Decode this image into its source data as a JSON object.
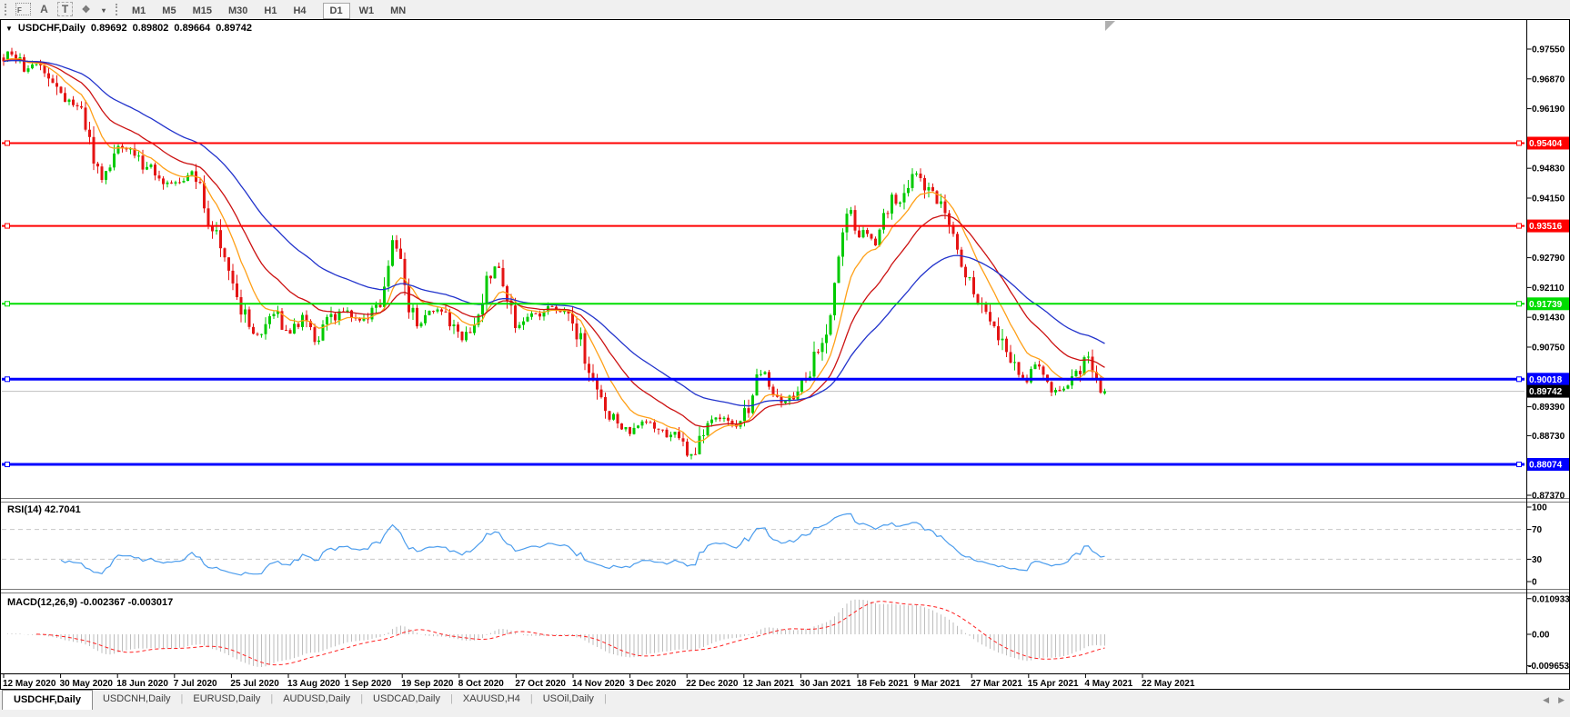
{
  "toolbar": {
    "icons": [
      {
        "name": "frame-tool-icon",
        "glyph": "F"
      },
      {
        "name": "text-label-icon",
        "glyph": "A"
      },
      {
        "name": "text-tool-icon",
        "glyph": "T"
      },
      {
        "name": "shapes-tool-icon",
        "glyph": "❖"
      },
      {
        "name": "shapes-dropdown-icon",
        "glyph": "▾"
      }
    ],
    "timeframes": [
      "M1",
      "M5",
      "M15",
      "M30",
      "H1",
      "H4",
      "D1",
      "W1",
      "MN"
    ],
    "active_timeframe": "D1"
  },
  "chart": {
    "title": {
      "dropdown_glyph": "▼",
      "symbol": "USDCHF,Daily",
      "open": "0.89692",
      "high": "0.89802",
      "low": "0.89664",
      "close": "0.89742"
    },
    "price_axis_ticks": [
      {
        "label": "0.97550",
        "value": 0.9755
      },
      {
        "label": "0.96870",
        "value": 0.9687
      },
      {
        "label": "0.96190",
        "value": 0.9619
      },
      {
        "label": "0.94830",
        "value": 0.9483
      },
      {
        "label": "0.94150",
        "value": 0.9415
      },
      {
        "label": "0.92790",
        "value": 0.9279
      },
      {
        "label": "0.92110",
        "value": 0.9211
      },
      {
        "label": "0.91430",
        "value": 0.9143
      },
      {
        "label": "0.90750",
        "value": 0.9075
      },
      {
        "label": "0.89390",
        "value": 0.8939
      },
      {
        "label": "0.88730",
        "value": 0.8873
      },
      {
        "label": "0.87370",
        "value": 0.8737
      }
    ],
    "hlines": [
      {
        "price": 0.95404,
        "label": "0.95404",
        "color": "#ff0000",
        "width": 2
      },
      {
        "price": 0.93516,
        "label": "0.93516",
        "color": "#ff0000",
        "width": 2
      },
      {
        "price": 0.91739,
        "label": "0.91739",
        "color": "#00dd00",
        "width": 2
      },
      {
        "price": 0.90018,
        "label": "0.90018",
        "color": "#0000ff",
        "width": 3
      },
      {
        "price": 0.88074,
        "label": "0.88074",
        "color": "#0000ff",
        "width": 3
      }
    ],
    "bid": {
      "price": 0.89742,
      "label": "0.89742"
    },
    "date_labels": [
      "12 May 2020",
      "30 May 2020",
      "18 Jun 2020",
      "7 Jul 2020",
      "25 Jul 2020",
      "13 Aug 2020",
      "1 Sep 2020",
      "19 Sep 2020",
      "8 Oct 2020",
      "27 Oct 2020",
      "14 Nov 2020",
      "3 Dec 2020",
      "22 Dec 2020",
      "12 Jan 2021",
      "30 Jan 2021",
      "18 Feb 2021",
      "9 Mar 2021",
      "27 Mar 2021",
      "15 Apr 2021",
      "4 May 2021",
      "22 May 2021"
    ],
    "price_path_anchors": [
      [
        0,
        0.973
      ],
      [
        14,
        0.975
      ],
      [
        28,
        0.97
      ],
      [
        42,
        0.9722
      ],
      [
        55,
        0.969
      ],
      [
        68,
        0.9645
      ],
      [
        80,
        0.9628
      ],
      [
        92,
        0.96
      ],
      [
        102,
        0.95
      ],
      [
        112,
        0.9455
      ],
      [
        122,
        0.95
      ],
      [
        134,
        0.9533
      ],
      [
        146,
        0.9518
      ],
      [
        158,
        0.949
      ],
      [
        170,
        0.9478
      ],
      [
        182,
        0.9452
      ],
      [
        194,
        0.9445
      ],
      [
        205,
        0.9462
      ],
      [
        214,
        0.947
      ],
      [
        222,
        0.9415
      ],
      [
        231,
        0.936
      ],
      [
        240,
        0.933
      ],
      [
        250,
        0.928
      ],
      [
        259,
        0.919
      ],
      [
        268,
        0.915
      ],
      [
        277,
        0.912
      ],
      [
        286,
        0.9085
      ],
      [
        294,
        0.9135
      ],
      [
        302,
        0.916
      ],
      [
        310,
        0.913
      ],
      [
        318,
        0.9105
      ],
      [
        327,
        0.913
      ],
      [
        336,
        0.915
      ],
      [
        344,
        0.9085
      ],
      [
        352,
        0.91
      ],
      [
        360,
        0.913
      ],
      [
        370,
        0.9148
      ],
      [
        380,
        0.9162
      ],
      [
        390,
        0.9145
      ],
      [
        400,
        0.9135
      ],
      [
        410,
        0.916
      ],
      [
        420,
        0.9175
      ],
      [
        428,
        0.926
      ],
      [
        433,
        0.933
      ],
      [
        438,
        0.93
      ],
      [
        444,
        0.922
      ],
      [
        452,
        0.915
      ],
      [
        460,
        0.913
      ],
      [
        470,
        0.9148
      ],
      [
        480,
        0.9162
      ],
      [
        490,
        0.9145
      ],
      [
        500,
        0.912
      ],
      [
        508,
        0.9085
      ],
      [
        516,
        0.911
      ],
      [
        524,
        0.915
      ],
      [
        532,
        0.92
      ],
      [
        540,
        0.9245
      ],
      [
        548,
        0.926
      ],
      [
        556,
        0.92
      ],
      [
        562,
        0.915
      ],
      [
        568,
        0.912
      ],
      [
        576,
        0.914
      ],
      [
        584,
        0.9155
      ],
      [
        592,
        0.9148
      ],
      [
        600,
        0.916
      ],
      [
        608,
        0.9165
      ],
      [
        616,
        0.9155
      ],
      [
        624,
        0.914
      ],
      [
        632,
        0.912
      ],
      [
        640,
        0.908
      ],
      [
        648,
        0.902
      ],
      [
        656,
        0.8975
      ],
      [
        664,
        0.8935
      ],
      [
        672,
        0.891
      ],
      [
        680,
        0.8908
      ],
      [
        688,
        0.8882
      ],
      [
        696,
        0.888
      ],
      [
        704,
        0.89
      ],
      [
        712,
        0.8902
      ],
      [
        720,
        0.889
      ],
      [
        728,
        0.8885
      ],
      [
        736,
        0.887
      ],
      [
        744,
        0.888
      ],
      [
        752,
        0.8848
      ],
      [
        760,
        0.8825
      ],
      [
        766,
        0.885
      ],
      [
        772,
        0.888
      ],
      [
        780,
        0.89
      ],
      [
        790,
        0.891
      ],
      [
        800,
        0.8912
      ],
      [
        810,
        0.8895
      ],
      [
        820,
        0.893
      ],
      [
        830,
        0.8985
      ],
      [
        838,
        0.9035
      ],
      [
        846,
        0.9
      ],
      [
        854,
        0.8965
      ],
      [
        862,
        0.8955
      ],
      [
        870,
        0.896
      ],
      [
        878,
        0.898
      ],
      [
        886,
        0.9
      ],
      [
        894,
        0.9045
      ],
      [
        902,
        0.9075
      ],
      [
        910,
        0.913
      ],
      [
        918,
        0.922
      ],
      [
        926,
        0.933
      ],
      [
        932,
        0.941
      ],
      [
        938,
        0.9365
      ],
      [
        944,
        0.933
      ],
      [
        950,
        0.936
      ],
      [
        956,
        0.933
      ],
      [
        962,
        0.93
      ],
      [
        968,
        0.934
      ],
      [
        974,
        0.939
      ],
      [
        980,
        0.9415
      ],
      [
        986,
        0.94
      ],
      [
        992,
        0.943
      ],
      [
        998,
        0.9445
      ],
      [
        1004,
        0.9465
      ],
      [
        1010,
        0.948
      ],
      [
        1016,
        0.945
      ],
      [
        1022,
        0.942
      ],
      [
        1028,
        0.9415
      ],
      [
        1034,
        0.9395
      ],
      [
        1040,
        0.936
      ],
      [
        1046,
        0.934
      ],
      [
        1052,
        0.9305
      ],
      [
        1058,
        0.9275
      ],
      [
        1064,
        0.924
      ],
      [
        1070,
        0.9215
      ],
      [
        1076,
        0.918
      ],
      [
        1082,
        0.916
      ],
      [
        1088,
        0.9152
      ],
      [
        1094,
        0.9125
      ],
      [
        1100,
        0.91
      ],
      [
        1106,
        0.9085
      ],
      [
        1112,
        0.9055
      ],
      [
        1118,
        0.903
      ],
      [
        1124,
        0.901
      ],
      [
        1130,
        0.8998
      ],
      [
        1136,
        0.904
      ],
      [
        1142,
        0.902
      ],
      [
        1148,
        0.8995
      ],
      [
        1154,
        0.898
      ],
      [
        1160,
        0.8978
      ],
      [
        1166,
        0.8985
      ],
      [
        1172,
        0.8988
      ],
      [
        1178,
        0.8992
      ],
      [
        1184,
        0.901
      ],
      [
        1190,
        0.9045
      ],
      [
        1196,
        0.906
      ],
      [
        1200,
        0.901
      ],
      [
        1205,
        0.8985
      ],
      [
        1210,
        0.8972
      ],
      [
        1215,
        0.8974
      ]
    ],
    "colors": {
      "up": "#00ca00",
      "down": "#e41414",
      "ma_fast": "#ffa018",
      "ma_mid": "#cc1111",
      "ma_slow": "#2233cc",
      "bid_line": "#bfbfbf",
      "bid_box": "#000000",
      "level_dash": "#c8c8c8"
    }
  },
  "rsi": {
    "label": "RSI(14) 42.7041",
    "value": "42.7041",
    "line_color": "#4a9ced",
    "levels": [
      {
        "value": 100,
        "label": "100",
        "dashed": false
      },
      {
        "value": 70,
        "label": "70",
        "dashed": true
      },
      {
        "value": 30,
        "label": "30",
        "dashed": true
      },
      {
        "value": 0,
        "label": "0",
        "dashed": false
      }
    ]
  },
  "macd": {
    "label": "MACD(12,26,9) -0.002367 -0.003017",
    "macd_value": "-0.002367",
    "signal_value": "-0.003017",
    "bar_color": "#bdbdbd",
    "signal_color": "#ff2020",
    "ticks": [
      {
        "value": 0.010933,
        "label": "0.010933"
      },
      {
        "value": 0,
        "label": "0.00"
      },
      {
        "value": -0.009653,
        "label": "-0.009653"
      }
    ]
  },
  "bottom_tabs": {
    "tabs": [
      "USDCHF,Daily",
      "USDCNH,Daily",
      "EURUSD,Daily",
      "AUDUSD,Daily",
      "USDCAD,Daily",
      "XAUUSD,H4",
      "USOil,Daily"
    ],
    "active_index": 0,
    "scroll_left_glyph": "◀",
    "scroll_right_glyph": "▶"
  }
}
